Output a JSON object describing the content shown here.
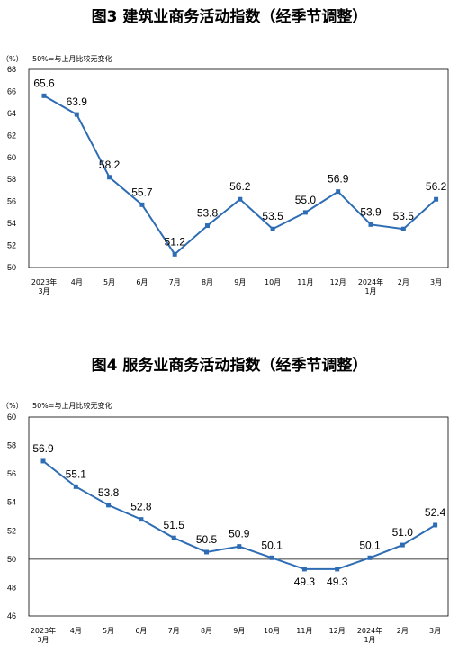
{
  "chart_data": [
    {
      "type": "line",
      "title": "图3  建筑业商务活动指数（经季节调整）",
      "unit": "（%）",
      "note": "50%=与上月比较无变化",
      "categories": [
        "2023年\n3月",
        "4月",
        "5月",
        "6月",
        "7月",
        "8月",
        "9月",
        "10月",
        "11月",
        "12月",
        "2024年\n1月",
        "2月",
        "3月"
      ],
      "values": [
        65.6,
        63.9,
        58.2,
        55.7,
        51.2,
        53.8,
        56.2,
        53.5,
        55.0,
        56.9,
        53.9,
        53.5,
        56.2
      ],
      "value_labels": [
        "65.6",
        "63.9",
        "58.2",
        "55.7",
        "51.2",
        "53.8",
        "56.2",
        "53.5",
        "55.0",
        "56.9",
        "53.9",
        "53.5",
        "56.2"
      ],
      "ylim": [
        50,
        68
      ],
      "yticks": [
        "50",
        "52",
        "54",
        "56",
        "58",
        "60",
        "62",
        "64",
        "66",
        "68"
      ],
      "grid": false,
      "line_color": "#2E6DB4"
    },
    {
      "type": "line",
      "title": "图4  服务业商务活动指数（经季节调整）",
      "unit": "（%）",
      "note": "50%=与上月比较无变化",
      "categories": [
        "2023年\n3月",
        "4月",
        "5月",
        "6月",
        "7月",
        "8月",
        "9月",
        "10月",
        "11月",
        "12月",
        "2024年\n1月",
        "2月",
        "3月"
      ],
      "values": [
        56.9,
        55.1,
        53.8,
        52.8,
        51.5,
        50.5,
        50.9,
        50.1,
        49.3,
        49.3,
        50.1,
        51.0,
        52.4
      ],
      "value_labels": [
        "56.9",
        "55.1",
        "53.8",
        "52.8",
        "51.5",
        "50.5",
        "50.9",
        "50.1",
        "49.3",
        "49.3",
        "50.1",
        "51.0",
        "52.4"
      ],
      "ylim": [
        46,
        60
      ],
      "yticks": [
        "46",
        "48",
        "50",
        "52",
        "54",
        "56",
        "58",
        "60"
      ],
      "reference_line": 50,
      "grid": false,
      "line_color": "#2E6DB4"
    }
  ]
}
